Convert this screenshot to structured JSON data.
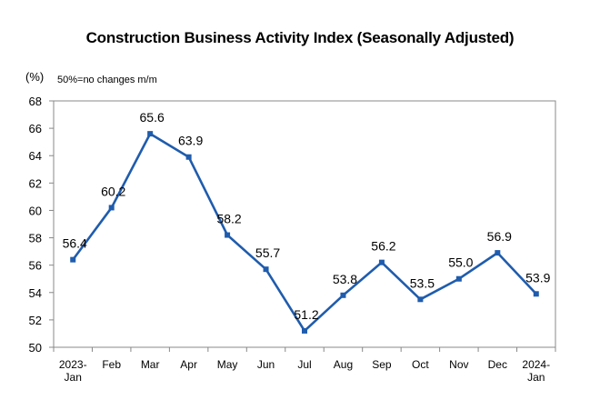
{
  "chart_data": {
    "type": "line",
    "title": "Construction Business Activity Index (Seasonally Adjusted)",
    "unit_label": "(%)",
    "note": "50%=no changes m/m",
    "categories": [
      [
        "2023-",
        "Jan"
      ],
      [
        "Feb"
      ],
      [
        "Mar"
      ],
      [
        "Apr"
      ],
      [
        "May"
      ],
      [
        "Jun"
      ],
      [
        "Jul"
      ],
      [
        "Aug"
      ],
      [
        "Sep"
      ],
      [
        "Oct"
      ],
      [
        "Nov"
      ],
      [
        "Dec"
      ],
      [
        "2024-",
        "Jan"
      ]
    ],
    "values": [
      56.4,
      60.2,
      65.6,
      63.9,
      58.2,
      55.7,
      51.2,
      53.8,
      56.2,
      53.5,
      55.0,
      56.9,
      53.9
    ],
    "value_labels": [
      "56.4",
      "60.2",
      "65.6",
      "63.9",
      "58.2",
      "55.7",
      "51.2",
      "53.8",
      "56.2",
      "53.5",
      "55.0",
      "56.9",
      "53.9"
    ],
    "ylim": [
      50,
      68
    ],
    "yticks": [
      "50",
      "52",
      "54",
      "56",
      "58",
      "60",
      "62",
      "64",
      "66",
      "68"
    ],
    "grid": false,
    "legend": "none",
    "line_color": "#1f5cad"
  }
}
